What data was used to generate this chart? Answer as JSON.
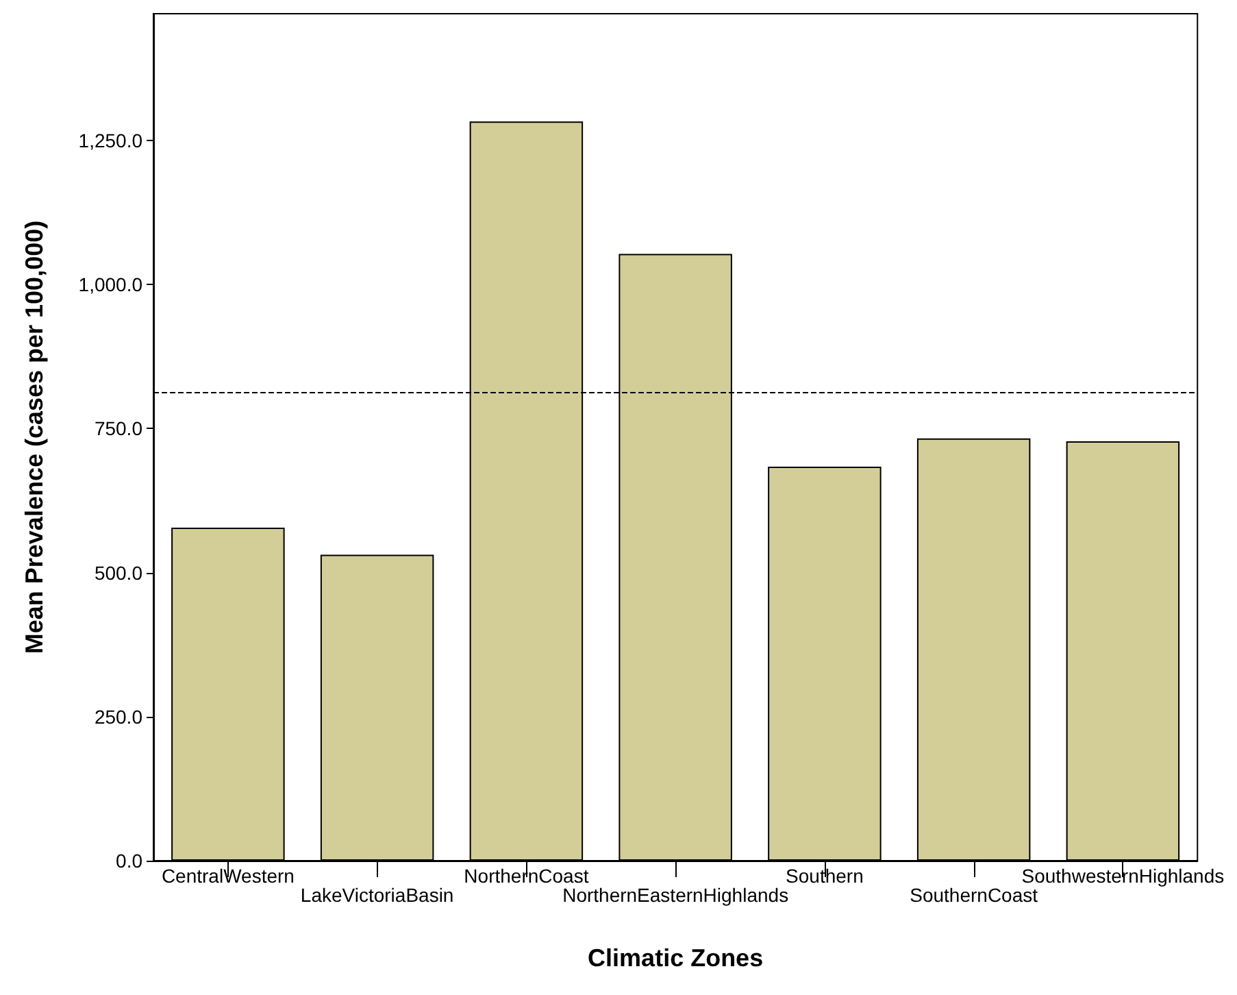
{
  "chart_data": {
    "type": "bar",
    "xlabel": "Climatic Zones",
    "ylabel": "Mean Prevalence (cases per 100,000)",
    "categories": [
      "CentralWestern",
      "LakeVictoriaBasin",
      "NorthernCoast",
      "NorthernEasternHighlands",
      "Southern",
      "SouthernCoast",
      "SouthwesternHighlands"
    ],
    "values": [
      578,
      531,
      1283,
      1053,
      684,
      733,
      728
    ],
    "color": "#d3ce98",
    "ylim": [
      0,
      1470
    ],
    "yticks": [
      {
        "value": 0,
        "label": "0.0"
      },
      {
        "value": 250,
        "label": "250.0"
      },
      {
        "value": 500,
        "label": "500.0"
      },
      {
        "value": 750,
        "label": "750.0"
      },
      {
        "value": 1000,
        "label": "1,000.0"
      },
      {
        "value": 1250,
        "label": "1,250.0"
      }
    ],
    "ref_lines": [
      {
        "axis": "y",
        "value": 813,
        "line_style": "dashed",
        "color": "#000000"
      }
    ]
  }
}
